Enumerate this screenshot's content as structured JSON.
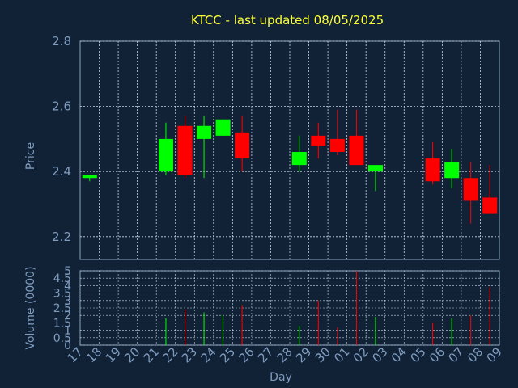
{
  "colors": {
    "background": "#112236",
    "plot_background": "#112236",
    "frame": "#8aa5c0",
    "grid": "#c8d4e2",
    "title": "#ffff33",
    "axis_text": "#7f9cbf",
    "up": "#00ff00",
    "down": "#ff0000"
  },
  "chart_data": [
    {
      "type": "candlestick",
      "title": "KTCC - last updated 08/05/2025",
      "ylabel": "Price",
      "ylim": [
        2.13,
        2.8
      ],
      "yticks": [
        "2.2",
        "2.4",
        "2.6",
        "2.8"
      ],
      "grid": true,
      "x_ticks": [
        "17",
        "18",
        "19",
        "20",
        "21",
        "22",
        "23",
        "24",
        "25",
        "26",
        "27",
        "28",
        "29",
        "30",
        "01",
        "02",
        "03",
        "04",
        "05",
        "06",
        "07",
        "08",
        "09"
      ],
      "candles": [
        {
          "day": "17",
          "open": 2.38,
          "high": 2.39,
          "low": 2.37,
          "close": 2.39
        },
        {
          "day": "21",
          "open": 2.4,
          "high": 2.55,
          "low": 2.39,
          "close": 2.5
        },
        {
          "day": "22",
          "open": 2.54,
          "high": 2.57,
          "low": 2.38,
          "close": 2.39
        },
        {
          "day": "23",
          "open": 2.5,
          "high": 2.57,
          "low": 2.38,
          "close": 2.54
        },
        {
          "day": "24",
          "open": 2.51,
          "high": 2.56,
          "low": 2.51,
          "close": 2.56
        },
        {
          "day": "25",
          "open": 2.52,
          "high": 2.57,
          "low": 2.4,
          "close": 2.44
        },
        {
          "day": "28",
          "open": 2.42,
          "high": 2.51,
          "low": 2.4,
          "close": 2.46
        },
        {
          "day": "29",
          "open": 2.51,
          "high": 2.55,
          "low": 2.44,
          "close": 2.48
        },
        {
          "day": "30",
          "open": 2.5,
          "high": 2.59,
          "low": 2.45,
          "close": 2.46
        },
        {
          "day": "01",
          "open": 2.51,
          "high": 2.59,
          "low": 2.42,
          "close": 2.42
        },
        {
          "day": "02",
          "open": 2.4,
          "high": 2.42,
          "low": 2.34,
          "close": 2.42
        },
        {
          "day": "05",
          "open": 2.44,
          "high": 2.49,
          "low": 2.36,
          "close": 2.37
        },
        {
          "day": "06",
          "open": 2.38,
          "high": 2.47,
          "low": 2.35,
          "close": 2.43
        },
        {
          "day": "07",
          "open": 2.38,
          "high": 2.43,
          "low": 2.24,
          "close": 2.31
        },
        {
          "day": "08",
          "open": 2.32,
          "high": 2.42,
          "low": 2.27,
          "close": 2.27
        }
      ]
    },
    {
      "type": "bar",
      "xlabel": "Day",
      "ylabel": "Volume (0000)",
      "ylim": [
        0,
        5
      ],
      "yticks": [
        "0",
        "0.5",
        "1",
        "1.5",
        "2",
        "2.5",
        "3",
        "3.5",
        "4",
        "4.5",
        "5"
      ],
      "grid": true,
      "x_ticks": [
        "17",
        "18",
        "19",
        "20",
        "21",
        "22",
        "23",
        "24",
        "25",
        "26",
        "27",
        "28",
        "29",
        "30",
        "01",
        "02",
        "03",
        "04",
        "05",
        "06",
        "07",
        "08",
        "09"
      ],
      "bars": [
        {
          "day": "17",
          "value": 0,
          "direction": "up"
        },
        {
          "day": "21",
          "value": 1.8,
          "direction": "up"
        },
        {
          "day": "22",
          "value": 2.4,
          "direction": "down"
        },
        {
          "day": "23",
          "value": 2.2,
          "direction": "up"
        },
        {
          "day": "24",
          "value": 2.0,
          "direction": "up"
        },
        {
          "day": "25",
          "value": 2.7,
          "direction": "down"
        },
        {
          "day": "28",
          "value": 1.3,
          "direction": "up"
        },
        {
          "day": "29",
          "value": 3.0,
          "direction": "down"
        },
        {
          "day": "30",
          "value": 1.2,
          "direction": "down"
        },
        {
          "day": "01",
          "value": 5.0,
          "direction": "down"
        },
        {
          "day": "02",
          "value": 1.9,
          "direction": "up"
        },
        {
          "day": "05",
          "value": 1.5,
          "direction": "down"
        },
        {
          "day": "06",
          "value": 1.8,
          "direction": "up"
        },
        {
          "day": "07",
          "value": 2.0,
          "direction": "down"
        },
        {
          "day": "08",
          "value": 3.9,
          "direction": "down"
        }
      ]
    }
  ]
}
